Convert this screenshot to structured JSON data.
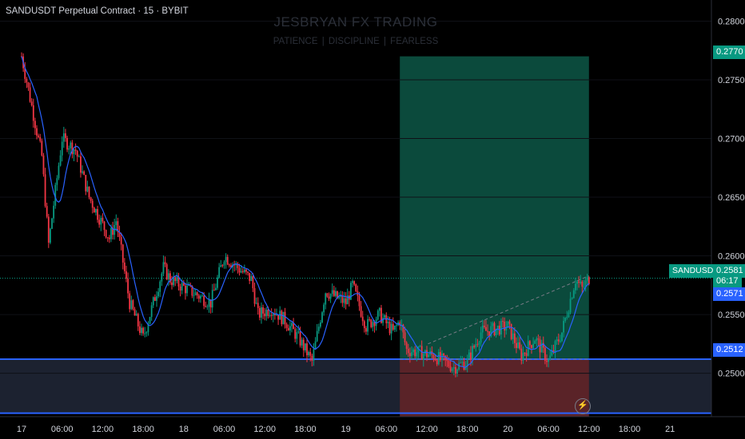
{
  "header": {
    "symbol_title": "SANDUSDT Perpetual Contract · 15 · BYBIT",
    "watermark_title": "JESBRYAN FX TRADING",
    "watermark_subtitle": "PATIENCE | DISCIPLINE | FEARLESS"
  },
  "price_tags": {
    "target": "0.2770",
    "last_symbol": "SANDUSDT.P",
    "last_price": "0.2581",
    "countdown": "06:17",
    "ma_value": "0.2571",
    "support": "0.2512"
  },
  "colors": {
    "up": "#089981",
    "down": "#f23645",
    "ma": "#2962ff",
    "level_line": "#2962ff",
    "profit_zone": "#0b4a3c",
    "loss_zone": "#5a2328",
    "support_zone": "#1c2230"
  },
  "icons": {
    "alert": "lightning-bolt-icon"
  },
  "chart_data": {
    "type": "candlestick",
    "interval": "15",
    "ylim": [
      0.2463,
      0.2818
    ],
    "y_ticks": [
      "0.2800",
      "0.2750",
      "0.2700",
      "0.2650",
      "0.2600",
      "0.2550",
      "0.2500"
    ],
    "x_ticks": [
      "17",
      "06:00",
      "12:00",
      "18:00",
      "18",
      "06:00",
      "12:00",
      "18:00",
      "19",
      "06:00",
      "12:00",
      "18:00",
      "20",
      "06:00",
      "12:00",
      "18:00",
      "21"
    ],
    "moving_average": {
      "last_value": 0.2571
    },
    "levels": {
      "support_top": 0.2512,
      "support_bottom": 0.2466,
      "last_price": 0.2581
    },
    "position": {
      "type": "long",
      "entry": 0.2512,
      "target": 0.277,
      "stop": 0.245,
      "start_time": "19 08:00",
      "end_time": "20 12:00"
    },
    "price_path": [
      [
        "17 00:00",
        0.277
      ],
      [
        "17 03:00",
        0.2685
      ],
      [
        "17 04:00",
        0.261
      ],
      [
        "17 06:00",
        0.27
      ],
      [
        "17 08:00",
        0.269
      ],
      [
        "17 10:00",
        0.265
      ],
      [
        "17 13:00",
        0.2615
      ],
      [
        "17 14:00",
        0.263
      ],
      [
        "17 16:00",
        0.256
      ],
      [
        "17 18:00",
        0.253
      ],
      [
        "17 21:00",
        0.259
      ],
      [
        "17 22:00",
        0.258
      ],
      [
        "18 01:00",
        0.257
      ],
      [
        "18 04:00",
        0.256
      ],
      [
        "18 06:00",
        0.26
      ],
      [
        "18 08:00",
        0.259
      ],
      [
        "18 10:00",
        0.258
      ],
      [
        "18 11:00",
        0.255
      ],
      [
        "18 13:00",
        0.2555
      ],
      [
        "18 15:00",
        0.2545
      ],
      [
        "18 17:00",
        0.253
      ],
      [
        "18 19:00",
        0.251
      ],
      [
        "18 21:00",
        0.257
      ],
      [
        "19 00:00",
        0.256
      ],
      [
        "19 01:00",
        0.2575
      ],
      [
        "19 03:00",
        0.254
      ],
      [
        "19 05:00",
        0.255
      ],
      [
        "19 07:00",
        0.2535
      ],
      [
        "19 08:00",
        0.2545
      ],
      [
        "19 09:00",
        0.252
      ],
      [
        "19 13:00",
        0.2515
      ],
      [
        "19 16:00",
        0.2505
      ],
      [
        "19 18:00",
        0.251
      ],
      [
        "19 20:00",
        0.2535
      ],
      [
        "20 00:00",
        0.254
      ],
      [
        "20 02:00",
        0.2515
      ],
      [
        "20 04:00",
        0.253
      ],
      [
        "20 06:00",
        0.251
      ],
      [
        "20 08:00",
        0.2535
      ],
      [
        "20 10:00",
        0.258
      ],
      [
        "20 11:00",
        0.2572
      ],
      [
        "20 12:00",
        0.2581
      ]
    ]
  }
}
